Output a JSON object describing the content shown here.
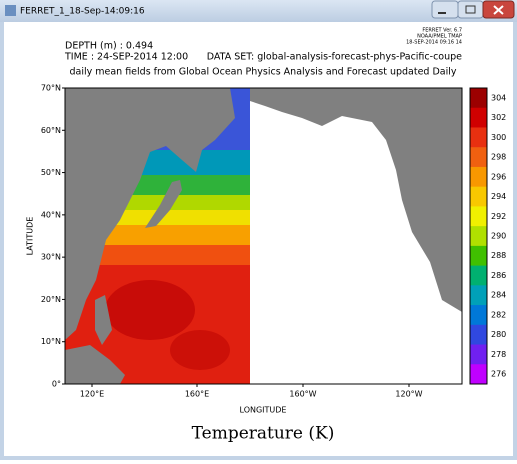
{
  "window": {
    "title": "FERRET_1_18-Sep-14:09:16"
  },
  "header": {
    "depth": "DEPTH (m) : 0.494",
    "time": "TIME : 24-SEP-2014 12:00",
    "dataset": "DATA SET: global-analysis-forecast-phys-Pacific-coupe",
    "subtitle": "daily mean fields from Global Ocean Physics Analysis and Forecast updated Daily",
    "stamp": [
      "FERRET Ver. 6.7",
      "NOAA/PMEL TMAP",
      "18-SEP-2014 09:16 14"
    ]
  },
  "axes": {
    "y_title": "LATITUDE",
    "x_title": "LONGITUDE",
    "y_labels": [
      "70°N",
      "60°N",
      "50°N",
      "40°N",
      "30°N",
      "20°N",
      "10°N",
      "0°"
    ],
    "x_labels": [
      "120°E",
      "160°E",
      "160°W",
      "120°W"
    ]
  },
  "colorbar": {
    "labels": [
      304,
      302,
      300,
      298,
      296,
      294,
      292,
      290,
      288,
      286,
      284,
      282,
      280,
      278,
      276
    ]
  },
  "caption": "Temperature (K)"
}
